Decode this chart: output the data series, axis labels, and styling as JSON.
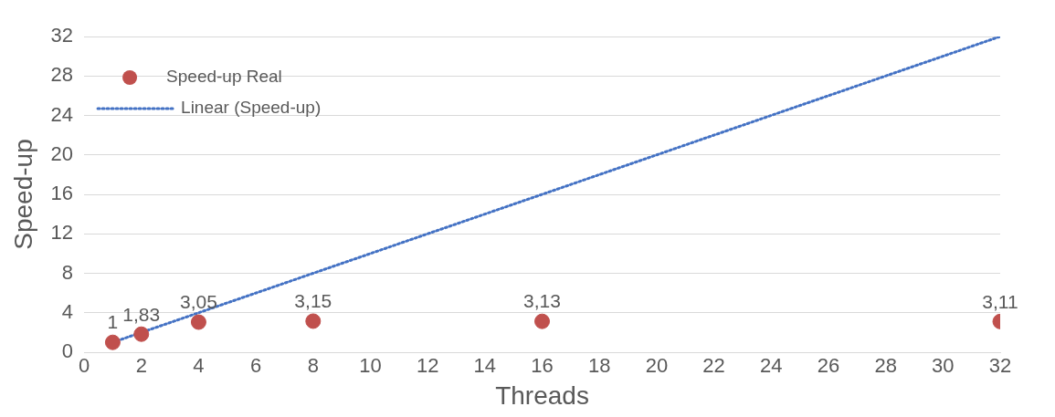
{
  "chart_data": {
    "type": "scatter",
    "xlabel": "Threads",
    "ylabel": "Speed-up",
    "xlim": [
      0,
      32
    ],
    "xticks": [
      0,
      2,
      4,
      6,
      8,
      10,
      12,
      14,
      16,
      18,
      20,
      22,
      24,
      26,
      28,
      30,
      32
    ],
    "ylim": [
      0,
      32
    ],
    "yticks": [
      0,
      4,
      8,
      12,
      16,
      20,
      24,
      28,
      32
    ],
    "grid": "y",
    "legend": "top left",
    "series": [
      {
        "name": "Speed-up Real",
        "color": "#c0504d",
        "marker": "circle",
        "x": [
          1,
          2,
          4,
          8,
          16,
          32
        ],
        "values": [
          1,
          1.83,
          3.05,
          3.15,
          3.13,
          3.11
        ],
        "value_labels": [
          "1",
          "1,83",
          "3,05",
          "3,15",
          "3,13",
          "3,11"
        ]
      },
      {
        "name": "Linear (Speed-up)",
        "type": "line",
        "color": "#4472c4",
        "line_style": "dotted",
        "marker": "none",
        "x": [
          1,
          32
        ],
        "values": [
          1,
          32
        ]
      }
    ]
  }
}
